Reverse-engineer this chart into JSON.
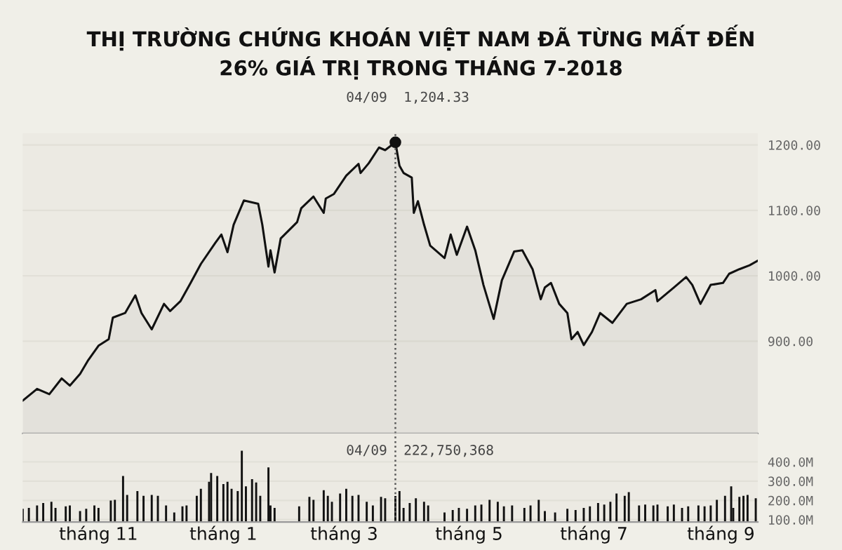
{
  "chart_data": [
    {
      "type": "area",
      "title": "THỊ TRƯỜNG CHỨNG KHOÁN VIỆT NAM ĐÃ TỪNG MẤT ĐẾN\n26% GIÁ TRỊ TRONG THÁNG 7-2018",
      "xlim": [
        "2017-10-09",
        "2018-10-03"
      ],
      "ylim": [
        759,
        1218
      ],
      "yticks": [
        {
          "value": 900,
          "label": "900.00"
        },
        {
          "value": 1000,
          "label": "1000.00"
        },
        {
          "value": 1100,
          "label": "1100.00"
        },
        {
          "value": 1200,
          "label": "1200.00"
        }
      ],
      "tick_labels": "y",
      "grid": "y",
      "series": [
        {
          "color": "#111111",
          "x": [
            "2017-10-09",
            "2017-10-16",
            "2017-10-22",
            "2017-10-28",
            "2017-11-01",
            "2017-11-06",
            "2017-11-10",
            "2017-11-15",
            "2017-11-20",
            "2017-11-22",
            "2017-11-28",
            "2017-12-03",
            "2017-12-06",
            "2017-12-11",
            "2017-12-17",
            "2017-12-20",
            "2017-12-25",
            "2017-12-30",
            "2018-01-04",
            "2018-01-11",
            "2018-01-14",
            "2018-01-17",
            "2018-01-20",
            "2018-01-25",
            "2018-02-01",
            "2018-02-03",
            "2018-02-06",
            "2018-02-07",
            "2018-02-09",
            "2018-02-12",
            "2018-02-20",
            "2018-02-22",
            "2018-02-28",
            "2018-03-05",
            "2018-03-06",
            "2018-03-10",
            "2018-03-16",
            "2018-03-22",
            "2018-03-23",
            "2018-03-27",
            "2018-04-01",
            "2018-04-04",
            "2018-04-09",
            "2018-04-11",
            "2018-04-13",
            "2018-04-17",
            "2018-04-18",
            "2018-04-20",
            "2018-04-23",
            "2018-04-26",
            "2018-05-03",
            "2018-05-06",
            "2018-05-09",
            "2018-05-14",
            "2018-05-18",
            "2018-05-22",
            "2018-05-27",
            "2018-05-31",
            "2018-06-06",
            "2018-06-10",
            "2018-06-15",
            "2018-06-19",
            "2018-06-21",
            "2018-06-24",
            "2018-06-28",
            "2018-07-02",
            "2018-07-04",
            "2018-07-07",
            "2018-07-10",
            "2018-07-14",
            "2018-07-18",
            "2018-07-24",
            "2018-07-31",
            "2018-08-07",
            "2018-08-14",
            "2018-08-15",
            "2018-08-23",
            "2018-08-29",
            "2018-09-01",
            "2018-09-05",
            "2018-09-10",
            "2018-09-16",
            "2018-09-19",
            "2018-09-24",
            "2018-09-29",
            "2018-10-03"
          ],
          "values": [
            809,
            827,
            819,
            843,
            832,
            850,
            871,
            893,
            903,
            936,
            943,
            970,
            943,
            918,
            957,
            946,
            961,
            989,
            1018,
            1050,
            1063,
            1036,
            1078,
            1115,
            1110,
            1078,
            1014,
            1039,
            1005,
            1057,
            1082,
            1103,
            1121,
            1096,
            1118,
            1125,
            1153,
            1171,
            1157,
            1172,
            1196,
            1192,
            1204,
            1168,
            1157,
            1150,
            1096,
            1114,
            1078,
            1046,
            1027,
            1063,
            1032,
            1075,
            1039,
            986,
            934,
            993,
            1037,
            1039,
            1010,
            964,
            982,
            989,
            957,
            943,
            903,
            914,
            894,
            914,
            943,
            928,
            957,
            964,
            978,
            961,
            982,
            998,
            986,
            957,
            986,
            989,
            1003,
            1010,
            1016,
            1023
          ]
        },
        {
          "type": "scatter",
          "color": "#111111",
          "marker": "circle",
          "x": [
            "2018-04-09"
          ],
          "values": [
            1204
          ]
        }
      ],
      "ref_lines": [
        {
          "axis": "x",
          "value": "2018-04-09",
          "label": "04/09",
          "color": "#555555",
          "line_style": "dotted"
        }
      ],
      "annotations": [
        "1,204.33"
      ]
    },
    {
      "type": "bar",
      "xlim": [
        "2017-10-09",
        "2018-10-03"
      ],
      "ylim": [
        88,
        548
      ],
      "yticks": [
        {
          "value": 100,
          "label": "100.0M"
        },
        {
          "value": 200,
          "label": "200.0M"
        },
        {
          "value": 300,
          "label": "300.0M"
        },
        {
          "value": 400,
          "label": "400.0M"
        }
      ],
      "xticks": [
        {
          "value": "2017-11-15",
          "label": "tháng 11"
        },
        {
          "value": "2018-01-15",
          "label": "tháng 1"
        },
        {
          "value": "2018-03-15",
          "label": "tháng 3"
        },
        {
          "value": "2018-05-15",
          "label": "tháng 5"
        },
        {
          "value": "2018-07-15",
          "label": "tháng 7"
        },
        {
          "value": "2018-09-15",
          "label": "tháng 9"
        }
      ],
      "grid": "y",
      "series": [
        {
          "color": "#111111",
          "x": [
            "2017-10-09",
            "2017-10-12",
            "2017-10-16",
            "2017-10-19",
            "2017-10-23",
            "2017-10-25",
            "2017-10-30",
            "2017-11-01",
            "2017-11-06",
            "2017-11-09",
            "2017-11-13",
            "2017-11-15",
            "2017-11-21",
            "2017-11-23",
            "2017-11-27",
            "2017-11-29",
            "2017-12-04",
            "2017-12-07",
            "2017-12-11",
            "2017-12-14",
            "2017-12-18",
            "2017-12-22",
            "2017-12-26",
            "2017-12-28",
            "2018-01-02",
            "2018-01-04",
            "2018-01-08",
            "2018-01-09",
            "2018-01-12",
            "2018-01-15",
            "2018-01-17",
            "2018-01-19",
            "2018-01-22",
            "2018-01-24",
            "2018-01-26",
            "2018-01-29",
            "2018-01-31",
            "2018-02-02",
            "2018-02-06",
            "2018-02-07",
            "2018-02-09",
            "2018-02-21",
            "2018-02-26",
            "2018-02-28",
            "2018-03-05",
            "2018-03-07",
            "2018-03-09",
            "2018-03-13",
            "2018-03-16",
            "2018-03-19",
            "2018-03-22",
            "2018-03-26",
            "2018-03-29",
            "2018-04-02",
            "2018-04-04",
            "2018-04-09",
            "2018-04-11",
            "2018-04-13",
            "2018-04-16",
            "2018-04-19",
            "2018-04-23",
            "2018-04-25",
            "2018-05-03",
            "2018-05-07",
            "2018-05-10",
            "2018-05-14",
            "2018-05-18",
            "2018-05-21",
            "2018-05-25",
            "2018-05-29",
            "2018-06-01",
            "2018-06-05",
            "2018-06-11",
            "2018-06-14",
            "2018-06-18",
            "2018-06-21",
            "2018-06-26",
            "2018-07-02",
            "2018-07-06",
            "2018-07-10",
            "2018-07-13",
            "2018-07-17",
            "2018-07-20",
            "2018-07-23",
            "2018-07-26",
            "2018-07-30",
            "2018-08-01",
            "2018-08-06",
            "2018-08-09",
            "2018-08-13",
            "2018-08-15",
            "2018-08-20",
            "2018-08-23",
            "2018-08-27",
            "2018-08-30",
            "2018-09-04",
            "2018-09-07",
            "2018-09-10",
            "2018-09-13",
            "2018-09-17",
            "2018-09-20",
            "2018-09-21",
            "2018-09-24",
            "2018-09-26",
            "2018-09-28",
            "2018-10-02"
          ],
          "values": [
            156,
            161,
            174,
            186,
            193,
            161,
            169,
            174,
            145,
            156,
            174,
            161,
            199,
            203,
            327,
            228,
            248,
            224,
            228,
            224,
            174,
            137,
            169,
            174,
            224,
            260,
            297,
            342,
            327,
            285,
            297,
            260,
            248,
            458,
            273,
            310,
            293,
            224,
            371,
            174,
            161,
            169,
            218,
            203,
            253,
            224,
            193,
            236,
            260,
            224,
            228,
            193,
            174,
            218,
            211,
            223,
            248,
            161,
            186,
            211,
            193,
            174,
            137,
            150,
            161,
            156,
            174,
            178,
            203,
            193,
            169,
            174,
            161,
            174,
            203,
            145,
            137,
            156,
            150,
            161,
            169,
            186,
            178,
            193,
            236,
            224,
            243,
            174,
            178,
            174,
            178,
            169,
            178,
            161,
            169,
            174,
            169,
            174,
            203,
            224,
            273,
            161,
            218,
            224,
            228,
            211
          ]
        }
      ],
      "ref_lines": [
        {
          "axis": "x",
          "value": "2018-04-09",
          "label": "04/09",
          "color": "#555555",
          "line_style": "dotted"
        }
      ],
      "annotations": [
        "222,750,368"
      ]
    }
  ]
}
